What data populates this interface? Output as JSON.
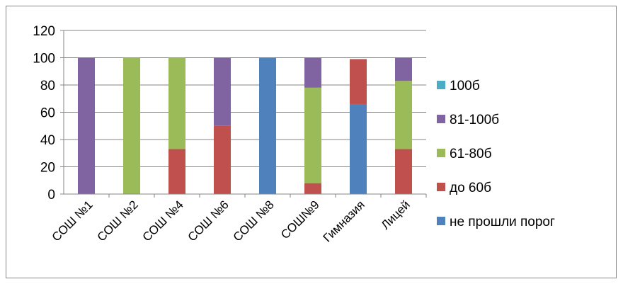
{
  "chart_data": {
    "type": "bar",
    "stacked": true,
    "categories": [
      "СОШ №1",
      "СОШ №2",
      "СОШ №4",
      "СОШ №6",
      "СОШ №8",
      "СОШ№9",
      "Гимназия",
      "Лицей"
    ],
    "series": [
      {
        "name": "не прошли порог",
        "color": "#4F81BD",
        "values": [
          0,
          0,
          0,
          0,
          100,
          0,
          66,
          0
        ]
      },
      {
        "name": "до 60б",
        "color": "#C0504D",
        "values": [
          0,
          0,
          33,
          50,
          0,
          8,
          33,
          33
        ]
      },
      {
        "name": "61-80б",
        "color": "#9BBB59",
        "values": [
          0,
          100,
          67,
          0,
          0,
          70,
          0,
          50
        ]
      },
      {
        "name": "81-100б",
        "color": "#8064A2",
        "values": [
          100,
          0,
          0,
          50,
          0,
          22,
          0,
          17
        ]
      },
      {
        "name": "100б",
        "color": "#4BACC6",
        "values": [
          0,
          0,
          0,
          0,
          0,
          0,
          0,
          0
        ]
      }
    ],
    "ylim": [
      0,
      120
    ],
    "yticks": [
      "0",
      "20",
      "40",
      "60",
      "80",
      "100",
      "120"
    ],
    "grid": true,
    "legend_position": "right",
    "title": "",
    "xlabel": "",
    "ylabel": ""
  }
}
